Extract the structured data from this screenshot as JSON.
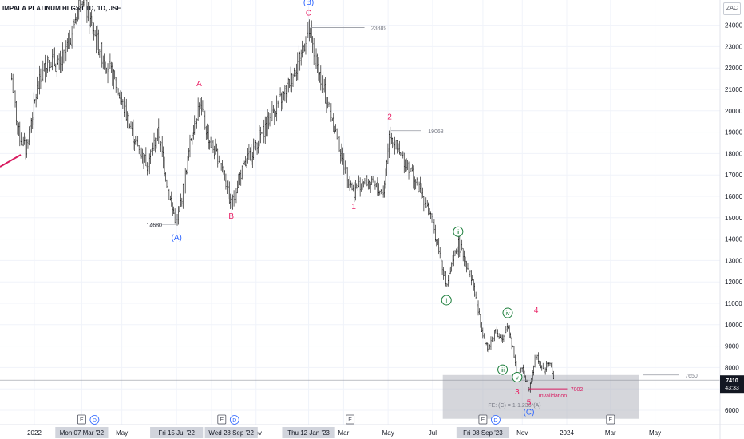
{
  "chart_data": {
    "type": "candlestick",
    "title": "IMPALA PLATINUM HLGS LTD, 1D, JSE",
    "currency": "ZAC",
    "yaxis": {
      "ticks": [
        6000,
        7000,
        8000,
        9000,
        10000,
        11000,
        12000,
        13000,
        14000,
        15000,
        16000,
        17000,
        18000,
        19000,
        20000,
        21000,
        22000,
        23000,
        24000
      ],
      "ylim": [
        5500,
        24600
      ]
    },
    "xaxis": {
      "ticks": [
        "2022",
        "May",
        "Sep",
        "Nov",
        "Mar",
        "May",
        "Jul",
        "Nov",
        "2024",
        "Mar",
        "May"
      ],
      "highlighted_dates": [
        "Mon 07 Mar '22",
        "Fri 15 Jul '22",
        "Wed 28 Sep '22",
        "Thu 12 Jan '23",
        "Fri 08 Sep '23"
      ]
    },
    "price_path": [
      [
        "2021-12-01",
        21500
      ],
      [
        "2021-12-10",
        19000
      ],
      [
        "2021-12-20",
        18200
      ],
      [
        "2022-01-05",
        21000
      ],
      [
        "2022-01-20",
        22500
      ],
      [
        "2022-02-05",
        22000
      ],
      [
        "2022-02-20",
        23500
      ],
      [
        "2022-03-07",
        25500
      ],
      [
        "2022-03-20",
        24000
      ],
      [
        "2022-04-05",
        22500
      ],
      [
        "2022-04-20",
        21500
      ],
      [
        "2022-05-05",
        20000
      ],
      [
        "2022-05-20",
        18500
      ],
      [
        "2022-06-05",
        17500
      ],
      [
        "2022-06-20",
        19000
      ],
      [
        "2022-07-05",
        16000
      ],
      [
        "2022-07-15",
        14680
      ],
      [
        "2022-07-25",
        16500
      ],
      [
        "2022-08-05",
        19000
      ],
      [
        "2022-08-15",
        20300
      ],
      [
        "2022-08-30",
        18500
      ],
      [
        "2022-09-15",
        17500
      ],
      [
        "2022-09-28",
        15500
      ],
      [
        "2022-10-10",
        17000
      ],
      [
        "2022-10-25",
        18000
      ],
      [
        "2022-11-10",
        19000
      ],
      [
        "2022-11-25",
        20000
      ],
      [
        "2022-12-10",
        20800
      ],
      [
        "2022-12-25",
        22000
      ],
      [
        "2023-01-05",
        23000
      ],
      [
        "2023-01-12",
        23889
      ],
      [
        "2023-01-20",
        22500
      ],
      [
        "2023-02-01",
        21000
      ],
      [
        "2023-02-15",
        19500
      ],
      [
        "2023-03-01",
        17500
      ],
      [
        "2023-03-15",
        16200
      ],
      [
        "2023-03-28",
        16800
      ],
      [
        "2023-04-10",
        16500
      ],
      [
        "2023-04-25",
        16200
      ],
      [
        "2023-05-03",
        19068
      ],
      [
        "2023-05-15",
        18000
      ],
      [
        "2023-05-28",
        17500
      ],
      [
        "2023-06-10",
        16500
      ],
      [
        "2023-06-25",
        15500
      ],
      [
        "2023-07-10",
        13500
      ],
      [
        "2023-07-20",
        11800
      ],
      [
        "2023-07-28",
        12800
      ],
      [
        "2023-08-05",
        13800
      ],
      [
        "2023-08-15",
        13000
      ],
      [
        "2023-08-25",
        12000
      ],
      [
        "2023-09-05",
        10000
      ],
      [
        "2023-09-15",
        8800
      ],
      [
        "2023-09-25",
        9800
      ],
      [
        "2023-10-05",
        9200
      ],
      [
        "2023-10-12",
        10000
      ],
      [
        "2023-10-20",
        8800
      ],
      [
        "2023-10-25",
        7500
      ],
      [
        "2023-11-01",
        8000
      ],
      [
        "2023-11-10",
        7002
      ],
      [
        "2023-11-20",
        8600
      ],
      [
        "2023-11-30",
        7800
      ],
      [
        "2023-12-08",
        8300
      ],
      [
        "2023-12-15",
        7410
      ]
    ],
    "annotations": {
      "price_labels": [
        {
          "text": "14680",
          "date": "2022-07-15",
          "price": 14680
        },
        {
          "text": "23889",
          "date": "2023-01-12",
          "price": 23889
        },
        {
          "text": "19068",
          "date": "2023-05-03",
          "price": 19068
        },
        {
          "text": "7650",
          "price": 7650
        },
        {
          "text": "7002",
          "price": 7002
        }
      ],
      "waves": [
        {
          "text": "(A)",
          "date": "2022-07-15",
          "price": 13950,
          "color": "#2962ff"
        },
        {
          "text": "A",
          "date": "2022-08-15",
          "price": 21150,
          "color": "#e91e63"
        },
        {
          "text": "B",
          "date": "2022-09-28",
          "price": 14950,
          "color": "#e91e63"
        },
        {
          "text": "C",
          "date": "2023-01-12",
          "price": 24450,
          "color": "#e91e63"
        },
        {
          "text": "(B)",
          "date": "2023-01-12",
          "price": 24950,
          "color": "#2962ff"
        },
        {
          "text": "1",
          "date": "2023-03-15",
          "price": 15400,
          "color": "#e91e63"
        },
        {
          "text": "2",
          "date": "2023-05-03",
          "price": 19600,
          "color": "#e91e63"
        },
        {
          "text": "3",
          "date": "2023-10-25",
          "price": 6750,
          "color": "#e91e63"
        },
        {
          "text": "4",
          "date": "2023-11-20",
          "price": 10550,
          "color": "#e91e63"
        },
        {
          "text": "5",
          "date": "2023-11-10",
          "price": 6250,
          "color": "#e91e63"
        },
        {
          "text": "(C)",
          "date": "2023-11-10",
          "price": 5800,
          "color": "#2962ff"
        }
      ],
      "circled_waves": [
        {
          "text": "i",
          "date": "2023-07-20",
          "price": 11150
        },
        {
          "text": "ii",
          "date": "2023-08-05",
          "price": 14350
        },
        {
          "text": "iii",
          "date": "2023-10-05",
          "price": 7900
        },
        {
          "text": "iv",
          "date": "2023-10-12",
          "price": 10550
        },
        {
          "text": "v",
          "date": "2023-10-25",
          "price": 7550
        }
      ],
      "invalidation_text": "Invalidation",
      "fe_text": "FE: (C) = 1-1.236*(A)",
      "target_box_prices": [
        5600,
        7650
      ],
      "current_price": "7410",
      "countdown": "43:33",
      "event_markers": [
        {
          "date": "2022-03-07",
          "letters": [
            "E",
            "D"
          ]
        },
        {
          "date": "2022-09-15",
          "letters": [
            "E",
            "D"
          ]
        },
        {
          "date": "2023-03-10",
          "letters": [
            "E"
          ]
        },
        {
          "date": "2023-09-08",
          "letters": [
            "E",
            "D"
          ]
        },
        {
          "date": "2024-03-01",
          "letters": [
            "E"
          ]
        }
      ]
    },
    "grid": true
  }
}
